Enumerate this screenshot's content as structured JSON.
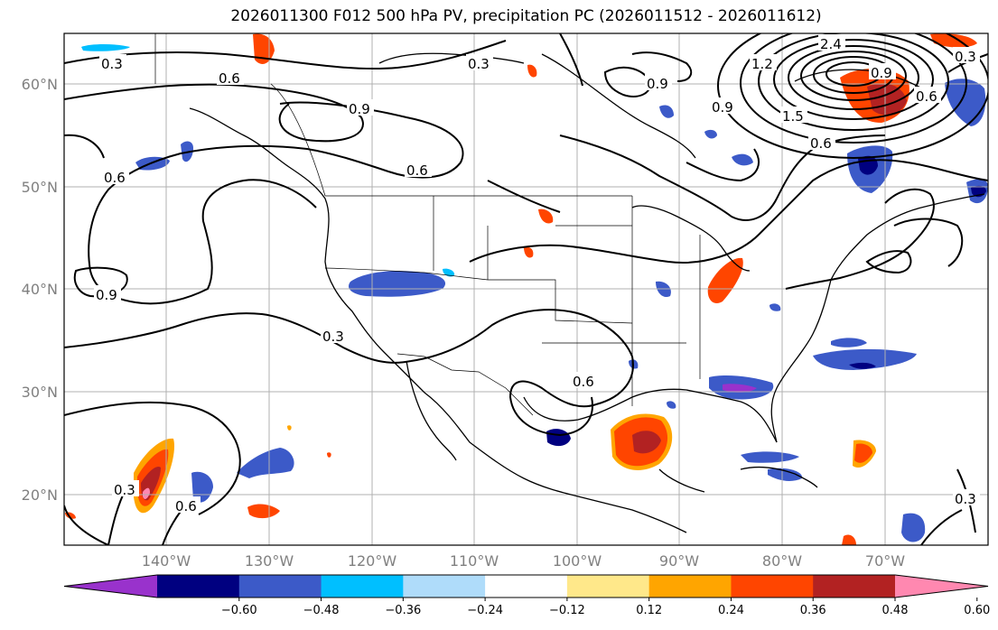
{
  "title": "2026011300 F012 500 hPa PV, precipitation PC (2026011512 - 2026011612)",
  "lat_labels": [
    "60°N",
    "50°N",
    "40°N",
    "30°N",
    "20°N"
  ],
  "lon_labels": [
    "140°W",
    "130°W",
    "120°W",
    "110°W",
    "100°W",
    "90°W",
    "80°W",
    "70°W"
  ],
  "colorbar": {
    "tick_labels": [
      "−0.60",
      "−0.48",
      "−0.36",
      "−0.24",
      "−0.12",
      "0.12",
      "0.24",
      "0.36",
      "0.48",
      "0.60"
    ],
    "colors": [
      "#9932cc",
      "#000080",
      "#3c5ac8",
      "#00bfff",
      "#afdcfa",
      "#ffffff",
      "#ffe88a",
      "#ffa500",
      "#ff4500",
      "#b22222",
      "#ff88b0"
    ]
  },
  "contour_labels": [
    "0.3",
    "0.6",
    "0.9",
    "0.6",
    "0.3",
    "0.9",
    "0.6",
    "0.6",
    "0.3",
    "0.6",
    "0.3",
    "0.6",
    "0.9",
    "1.2",
    "2.4",
    "0.9",
    "0.6",
    "1.5",
    "0.9",
    "0.3",
    "0.3"
  ]
}
